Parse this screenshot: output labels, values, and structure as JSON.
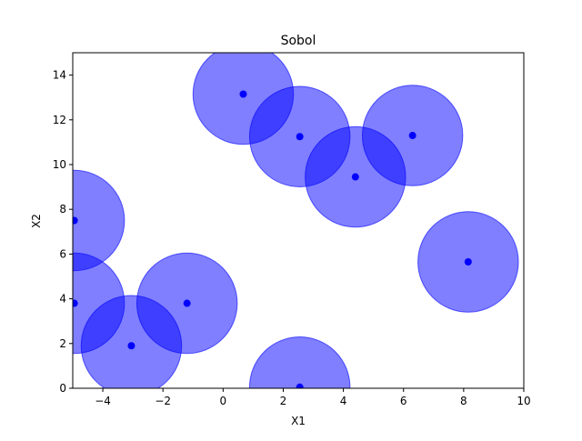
{
  "chart_data": {
    "type": "scatter",
    "title": "Sobol",
    "xlabel": "X1",
    "ylabel": "X2",
    "xlim": [
      -5,
      10
    ],
    "ylim": [
      0,
      15
    ],
    "xticks": [
      -4,
      -2,
      0,
      2,
      4,
      6,
      8,
      10
    ],
    "yticks": [
      0,
      2,
      4,
      6,
      8,
      10,
      12,
      14
    ],
    "xtick_labels": [
      "−4",
      "−2",
      "0",
      "2",
      "4",
      "6",
      "8",
      "10"
    ],
    "ytick_labels": [
      "0",
      "2",
      "4",
      "6",
      "8",
      "10",
      "12",
      "14"
    ],
    "grid": false,
    "point_color": "#0000ff",
    "circle_fill": "#0000ff",
    "circle_opacity": 0.5,
    "circle_radius": 1.67,
    "points": [
      {
        "x": 0.67,
        "y": 13.15
      },
      {
        "x": 2.55,
        "y": 11.25
      },
      {
        "x": 4.4,
        "y": 9.45
      },
      {
        "x": 6.3,
        "y": 11.3
      },
      {
        "x": -4.95,
        "y": 7.5
      },
      {
        "x": 8.15,
        "y": 5.65
      },
      {
        "x": -4.95,
        "y": 3.8
      },
      {
        "x": -1.2,
        "y": 3.8
      },
      {
        "x": -3.05,
        "y": 1.9
      },
      {
        "x": 2.55,
        "y": 0.05
      }
    ]
  }
}
